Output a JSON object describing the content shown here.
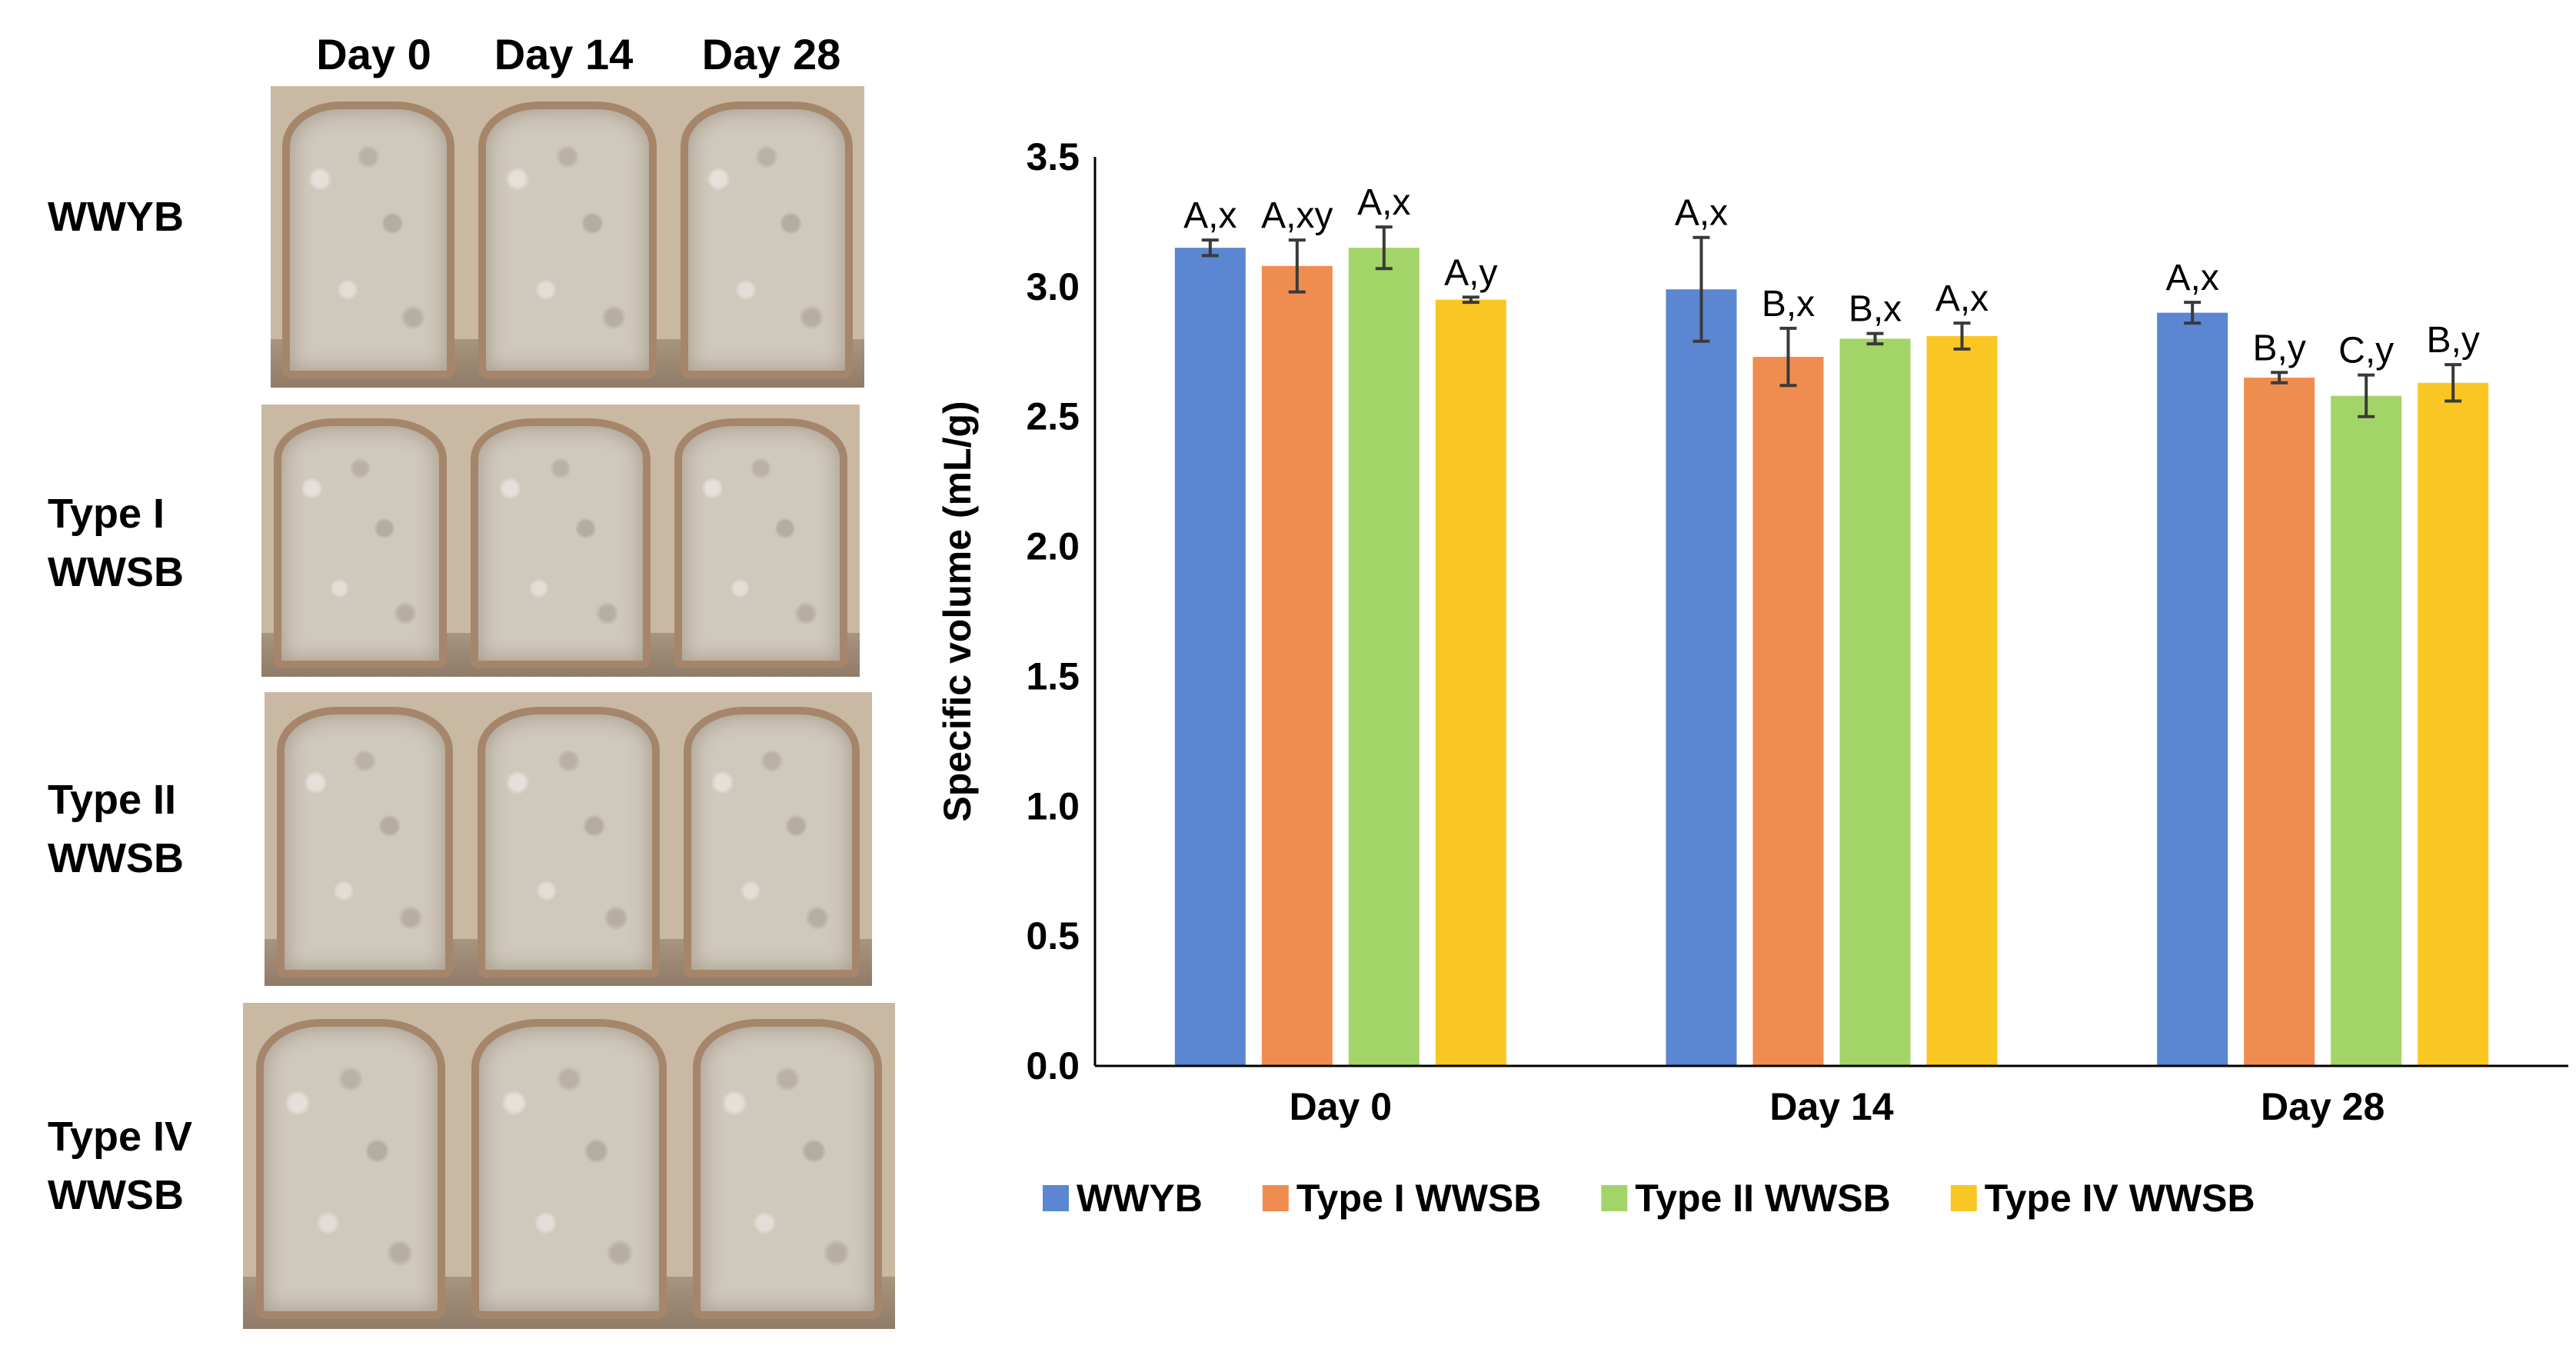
{
  "photo_panel": {
    "column_headers": [
      "Day 0",
      "Day 14",
      "Day 28"
    ],
    "rows": [
      {
        "label_lines": [
          "WWYB"
        ]
      },
      {
        "label_lines": [
          "Type I",
          "WWSB"
        ]
      },
      {
        "label_lines": [
          "Type II",
          "WWSB"
        ]
      },
      {
        "label_lines": [
          "Type IV",
          "WWSB"
        ]
      }
    ]
  },
  "chart_data": {
    "type": "bar",
    "title": "",
    "xlabel": "",
    "ylabel": "Specific volume (mL/g)",
    "ylim": [
      0,
      3.5
    ],
    "yticks": [
      "0.0",
      "0.5",
      "1.0",
      "1.5",
      "2.0",
      "2.5",
      "3.0",
      "3.5"
    ],
    "categories": [
      "Day 0",
      "Day 14",
      "Day 28"
    ],
    "legend_position": "bottom",
    "grid": false,
    "series": [
      {
        "name": "WWYB",
        "color": "#5B86D1",
        "values": [
          3.15,
          2.99,
          2.9
        ],
        "errors": [
          0.03,
          0.2,
          0.04
        ],
        "labels": [
          "A,x",
          "A,x",
          "A,x"
        ]
      },
      {
        "name": "Type I WWSB",
        "color": "#EF8D50",
        "values": [
          3.08,
          2.73,
          2.65
        ],
        "errors": [
          0.1,
          0.11,
          0.02
        ],
        "labels": [
          "A,xy",
          "B,x",
          "B,y"
        ]
      },
      {
        "name": "Type II WWSB",
        "color": "#A3D468",
        "values": [
          3.15,
          2.8,
          2.58
        ],
        "errors": [
          0.08,
          0.02,
          0.08
        ],
        "labels": [
          "A,x",
          "B,x",
          "C,y"
        ]
      },
      {
        "name": "Type IV WWSB",
        "color": "#FAC624",
        "values": [
          2.95,
          2.81,
          2.63
        ],
        "errors": [
          0.01,
          0.05,
          0.07
        ],
        "labels": [
          "A,y",
          "A,x",
          "B,y"
        ]
      }
    ]
  }
}
